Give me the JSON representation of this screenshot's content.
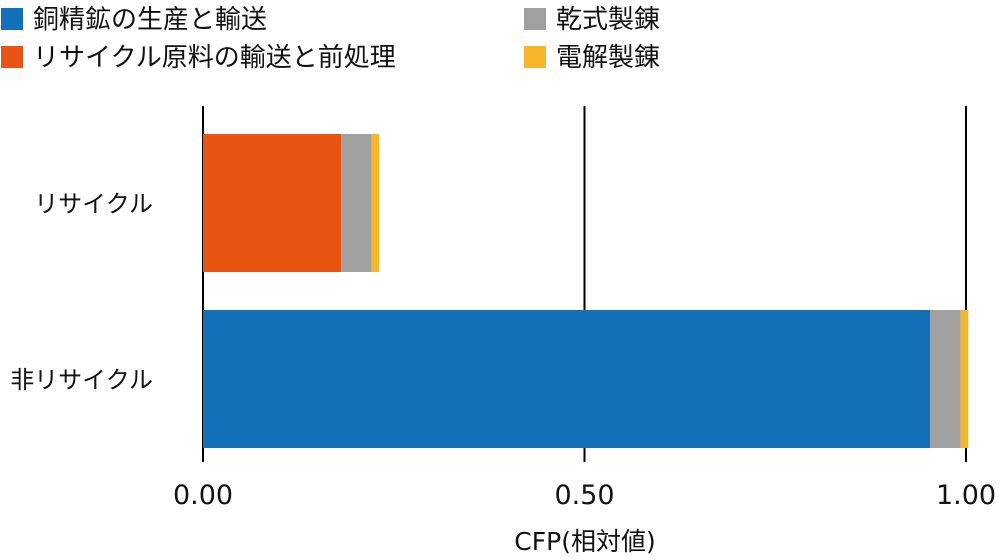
{
  "chart_data": {
    "type": "bar",
    "orientation": "horizontal",
    "stacked": true,
    "categories": [
      "リサイクル",
      "非リサイクル"
    ],
    "series": [
      {
        "name": "銅精鉱の生産と輸送",
        "color": "#1170b8",
        "values": [
          0,
          0.953
        ]
      },
      {
        "name": "リサイクル原料の輸送と前処理",
        "color": "#e85513",
        "values": [
          0.181,
          0
        ]
      },
      {
        "name": "乾式製錬",
        "color": "#a0a0a0",
        "values": [
          0.04,
          0.04
        ]
      },
      {
        "name": "電解製錬",
        "color": "#f7b52c",
        "values": [
          0.01,
          0.01
        ]
      }
    ],
    "xlabel": "CFP(相対値)",
    "xlim": [
      0,
      1
    ],
    "xticks": [
      0.0,
      0.5,
      1.0
    ],
    "xtick_labels": [
      "0.00",
      "0.50",
      "1.00"
    ],
    "grid": "vertical lines at ticks",
    "legend_position": "top"
  }
}
